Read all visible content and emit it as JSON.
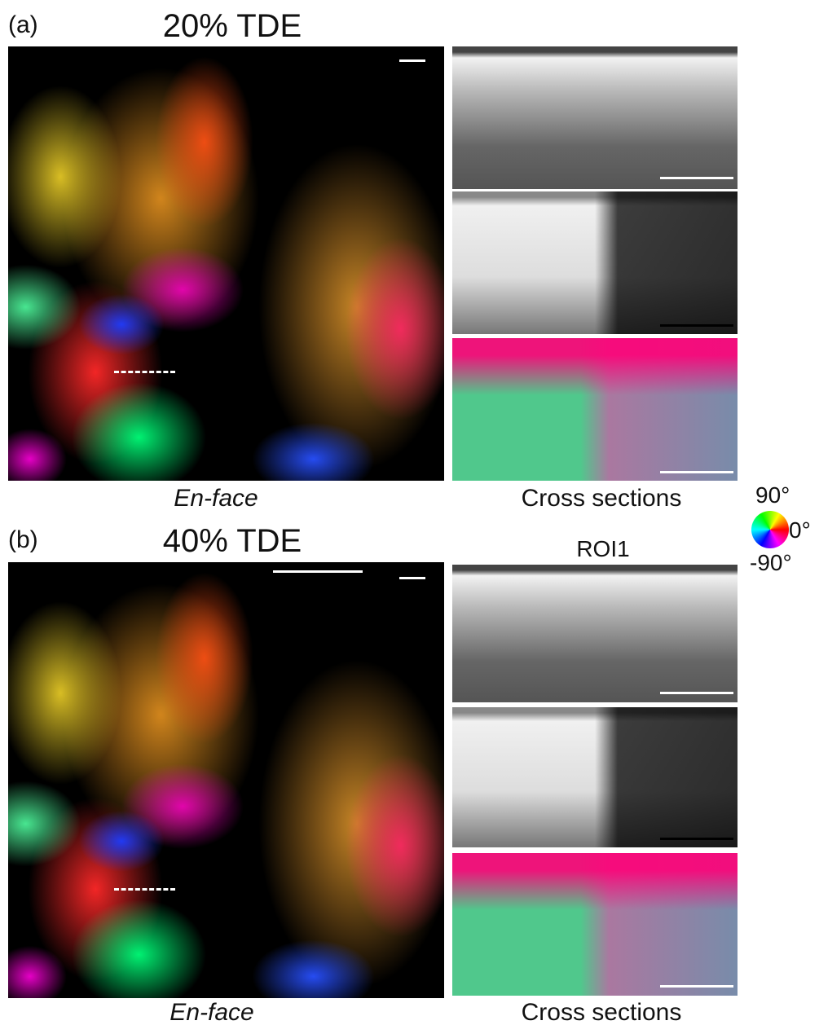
{
  "panels": [
    {
      "label": "(a)",
      "title": "20% TDE",
      "en_face_caption": "En-face",
      "cross_caption": "Cross sections"
    },
    {
      "label": "(b)",
      "title": "40% TDE",
      "en_face_caption": "En-face",
      "cross_caption": "Cross sections",
      "roi_label": "ROI1"
    }
  ],
  "colorwheel": {
    "top": "90°",
    "right": "0°",
    "bottom": "-90°"
  }
}
